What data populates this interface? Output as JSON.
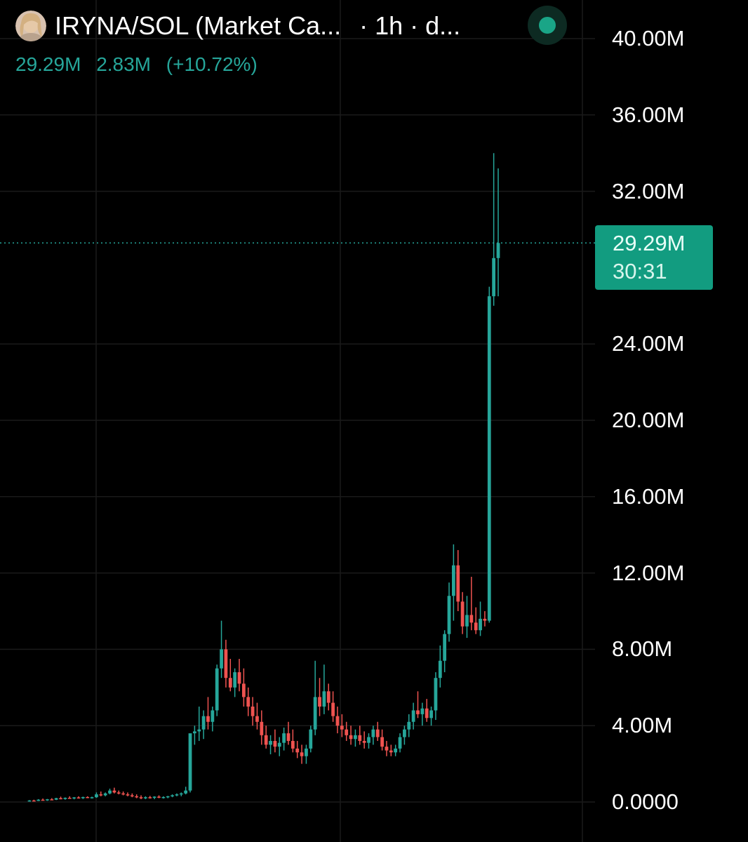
{
  "header": {
    "symbol": "IRYNA/SOL (Market Ca...",
    "interval": "· 1h · d...",
    "avatar": "avatar-photo"
  },
  "stats": {
    "value": "29.29M",
    "change": "2.83M",
    "change_pct": "(+10.72%)"
  },
  "price_tag": {
    "price": "29.29M",
    "countdown": "30:31"
  },
  "colors": {
    "up": "#26a69a",
    "down": "#ef5350",
    "grid": "#1a1a1a",
    "background": "#000000",
    "tag": "#129c80"
  },
  "chart_data": {
    "type": "candlestick",
    "title": "IRYNA/SOL (Market Ca...",
    "interval": "1h",
    "ylim": [
      0,
      40000000
    ],
    "y_ticks": [
      "40.00M",
      "36.00M",
      "32.00M",
      "29.29M",
      "24.00M",
      "20.00M",
      "16.00M",
      "12.00M",
      "8.00M",
      "4.00M",
      "0.0000"
    ],
    "y_tick_values": [
      40,
      36,
      32,
      24,
      20,
      16,
      12,
      8,
      4,
      0
    ],
    "grid": true,
    "last_price": 29.29,
    "units": "M",
    "candles_ohlc_millions": [
      [
        0.05,
        0.1,
        0.02,
        0.08
      ],
      [
        0.08,
        0.12,
        0.04,
        0.06
      ],
      [
        0.06,
        0.15,
        0.05,
        0.12
      ],
      [
        0.12,
        0.18,
        0.08,
        0.1
      ],
      [
        0.1,
        0.16,
        0.06,
        0.14
      ],
      [
        0.14,
        0.2,
        0.1,
        0.12
      ],
      [
        0.12,
        0.22,
        0.1,
        0.2
      ],
      [
        0.2,
        0.28,
        0.14,
        0.16
      ],
      [
        0.16,
        0.24,
        0.12,
        0.22
      ],
      [
        0.22,
        0.3,
        0.18,
        0.2
      ],
      [
        0.2,
        0.26,
        0.14,
        0.24
      ],
      [
        0.24,
        0.3,
        0.18,
        0.2
      ],
      [
        0.2,
        0.28,
        0.16,
        0.26
      ],
      [
        0.26,
        0.3,
        0.2,
        0.22
      ],
      [
        0.22,
        0.28,
        0.18,
        0.25
      ],
      [
        0.25,
        0.5,
        0.22,
        0.4
      ],
      [
        0.4,
        0.55,
        0.3,
        0.35
      ],
      [
        0.35,
        0.5,
        0.3,
        0.45
      ],
      [
        0.45,
        0.7,
        0.4,
        0.6
      ],
      [
        0.6,
        0.75,
        0.45,
        0.5
      ],
      [
        0.5,
        0.6,
        0.4,
        0.45
      ],
      [
        0.45,
        0.55,
        0.35,
        0.4
      ],
      [
        0.4,
        0.5,
        0.3,
        0.35
      ],
      [
        0.35,
        0.45,
        0.25,
        0.3
      ],
      [
        0.3,
        0.4,
        0.2,
        0.25
      ],
      [
        0.25,
        0.35,
        0.15,
        0.2
      ],
      [
        0.2,
        0.3,
        0.15,
        0.25
      ],
      [
        0.25,
        0.32,
        0.18,
        0.22
      ],
      [
        0.22,
        0.3,
        0.15,
        0.28
      ],
      [
        0.28,
        0.35,
        0.2,
        0.24
      ],
      [
        0.24,
        0.3,
        0.18,
        0.26
      ],
      [
        0.26,
        0.32,
        0.2,
        0.3
      ],
      [
        0.3,
        0.4,
        0.25,
        0.35
      ],
      [
        0.35,
        0.45,
        0.3,
        0.4
      ],
      [
        0.4,
        0.5,
        0.3,
        0.45
      ],
      [
        0.45,
        0.8,
        0.4,
        0.6
      ],
      [
        0.6,
        1.0,
        0.5,
        3.6
      ],
      [
        3.6,
        4.0,
        3.0,
        3.7
      ],
      [
        3.7,
        5.0,
        3.2,
        3.8
      ],
      [
        3.8,
        4.8,
        3.3,
        4.5
      ],
      [
        4.5,
        5.5,
        3.8,
        4.2
      ],
      [
        4.2,
        5.0,
        3.7,
        4.8
      ],
      [
        4.8,
        7.2,
        4.5,
        7.0
      ],
      [
        7.0,
        9.5,
        6.5,
        8.0
      ],
      [
        8.0,
        8.5,
        6.0,
        6.5
      ],
      [
        6.5,
        7.5,
        5.8,
        6.0
      ],
      [
        6.0,
        7.0,
        5.5,
        6.8
      ],
      [
        6.8,
        7.5,
        5.8,
        6.2
      ],
      [
        6.2,
        7.0,
        5.0,
        5.5
      ],
      [
        5.5,
        6.0,
        4.5,
        5.0
      ],
      [
        5.0,
        5.5,
        4.0,
        4.5
      ],
      [
        4.5,
        5.2,
        3.8,
        4.2
      ],
      [
        4.2,
        4.8,
        3.0,
        3.5
      ],
      [
        3.5,
        4.0,
        2.8,
        3.0
      ],
      [
        3.0,
        3.5,
        2.5,
        3.2
      ],
      [
        3.2,
        3.8,
        2.6,
        2.9
      ],
      [
        2.9,
        3.4,
        2.4,
        3.1
      ],
      [
        3.1,
        3.9,
        2.7,
        3.6
      ],
      [
        3.6,
        4.2,
        3.0,
        3.2
      ],
      [
        3.2,
        3.8,
        2.6,
        2.8
      ],
      [
        2.8,
        3.2,
        2.3,
        2.6
      ],
      [
        2.6,
        3.0,
        2.0,
        2.4
      ],
      [
        2.4,
        3.0,
        2.0,
        2.8
      ],
      [
        2.8,
        4.0,
        2.6,
        3.8
      ],
      [
        3.8,
        7.4,
        3.5,
        5.5
      ],
      [
        5.5,
        6.5,
        4.5,
        5.0
      ],
      [
        5.0,
        7.2,
        4.6,
        5.8
      ],
      [
        5.8,
        6.2,
        4.8,
        5.2
      ],
      [
        5.2,
        5.8,
        4.2,
        4.5
      ],
      [
        4.5,
        5.0,
        3.6,
        4.0
      ],
      [
        4.0,
        4.6,
        3.4,
        3.8
      ],
      [
        3.8,
        4.2,
        3.2,
        3.5
      ],
      [
        3.5,
        4.0,
        3.0,
        3.3
      ],
      [
        3.3,
        3.8,
        2.9,
        3.5
      ],
      [
        3.5,
        4.0,
        3.0,
        3.2
      ],
      [
        3.2,
        3.7,
        2.8,
        3.1
      ],
      [
        3.1,
        3.6,
        2.8,
        3.4
      ],
      [
        3.4,
        4.0,
        3.0,
        3.8
      ],
      [
        3.8,
        4.2,
        3.2,
        3.4
      ],
      [
        3.4,
        3.8,
        2.7,
        2.9
      ],
      [
        2.9,
        3.2,
        2.4,
        2.7
      ],
      [
        2.7,
        3.0,
        2.4,
        2.6
      ],
      [
        2.6,
        3.0,
        2.4,
        2.8
      ],
      [
        2.8,
        3.6,
        2.6,
        3.4
      ],
      [
        3.4,
        4.0,
        3.0,
        3.8
      ],
      [
        3.8,
        4.6,
        3.4,
        4.2
      ],
      [
        4.2,
        5.2,
        3.8,
        4.8
      ],
      [
        4.8,
        5.8,
        4.4,
        4.6
      ],
      [
        4.6,
        5.2,
        4.0,
        4.9
      ],
      [
        4.9,
        5.4,
        4.2,
        4.4
      ],
      [
        4.4,
        5.0,
        4.0,
        4.8
      ],
      [
        4.8,
        6.8,
        4.3,
        6.5
      ],
      [
        6.5,
        8.2,
        6.0,
        7.4
      ],
      [
        7.4,
        9.0,
        6.8,
        8.8
      ],
      [
        8.8,
        11.5,
        8.4,
        10.8
      ],
      [
        10.8,
        13.5,
        9.5,
        12.4
      ],
      [
        12.4,
        13.2,
        10.0,
        10.5
      ],
      [
        10.5,
        11.0,
        8.8,
        9.2
      ],
      [
        9.2,
        10.8,
        8.6,
        9.8
      ],
      [
        9.8,
        11.8,
        9.0,
        9.4
      ],
      [
        9.4,
        10.2,
        8.8,
        9.0
      ],
      [
        9.0,
        10.5,
        8.7,
        9.6
      ],
      [
        9.6,
        10.0,
        9.2,
        9.5
      ],
      [
        9.5,
        27.0,
        9.4,
        26.5
      ],
      [
        26.5,
        34.0,
        26.0,
        28.5
      ],
      [
        28.5,
        33.2,
        26.5,
        29.29
      ]
    ]
  }
}
